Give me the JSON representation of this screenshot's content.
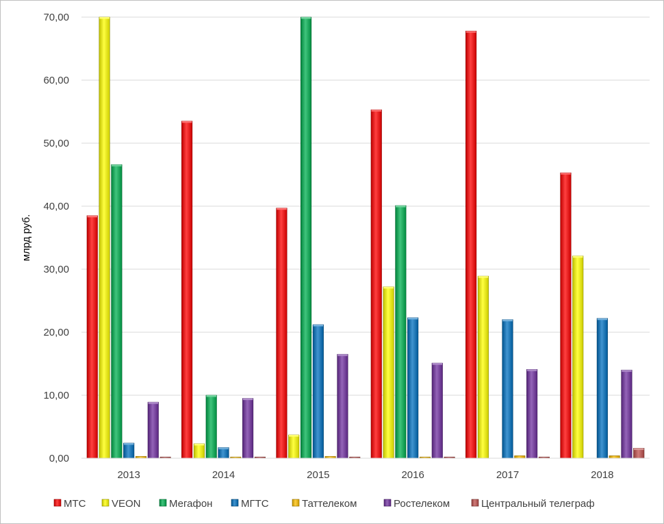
{
  "chart_data": {
    "type": "bar",
    "title": "",
    "xlabel": "",
    "ylabel": "млрд руб.",
    "ylim": [
      0,
      70
    ],
    "y_ticks": [
      "0,00",
      "10,00",
      "20,00",
      "30,00",
      "40,00",
      "50,00",
      "60,00",
      "70,00"
    ],
    "grid": true,
    "legend_position": "bottom",
    "categories": [
      "2013",
      "2014",
      "2015",
      "2016",
      "2017",
      "2018"
    ],
    "series": [
      {
        "name": "МТС",
        "color": "#ff0000",
        "values": [
          38.5,
          53.5,
          39.7,
          55.3,
          67.8,
          45.3
        ]
      },
      {
        "name": "VEON",
        "color": "#ffff00",
        "values": [
          70.0,
          2.3,
          3.7,
          27.2,
          28.9,
          32.1
        ]
      },
      {
        "name": "Мегафон",
        "color": "#00b050",
        "values": [
          46.6,
          10.0,
          70.0,
          40.1,
          0,
          0
        ]
      },
      {
        "name": "МГТС",
        "color": "#0070c0",
        "values": [
          2.4,
          1.7,
          21.2,
          22.3,
          22.0,
          22.2
        ]
      },
      {
        "name": "Таттелеком",
        "color": "#ffc000",
        "values": [
          0.3,
          0.2,
          0.3,
          0.2,
          0.4,
          0.4
        ]
      },
      {
        "name": "Ростелеком",
        "color": "#7030a0",
        "values": [
          8.9,
          9.5,
          16.5,
          15.1,
          14.1,
          14.0
        ]
      },
      {
        "name": "Центральный телеграф",
        "color": "#c0504d",
        "values": [
          0.2,
          0.2,
          0.2,
          0.2,
          0.2,
          1.6
        ]
      }
    ]
  }
}
